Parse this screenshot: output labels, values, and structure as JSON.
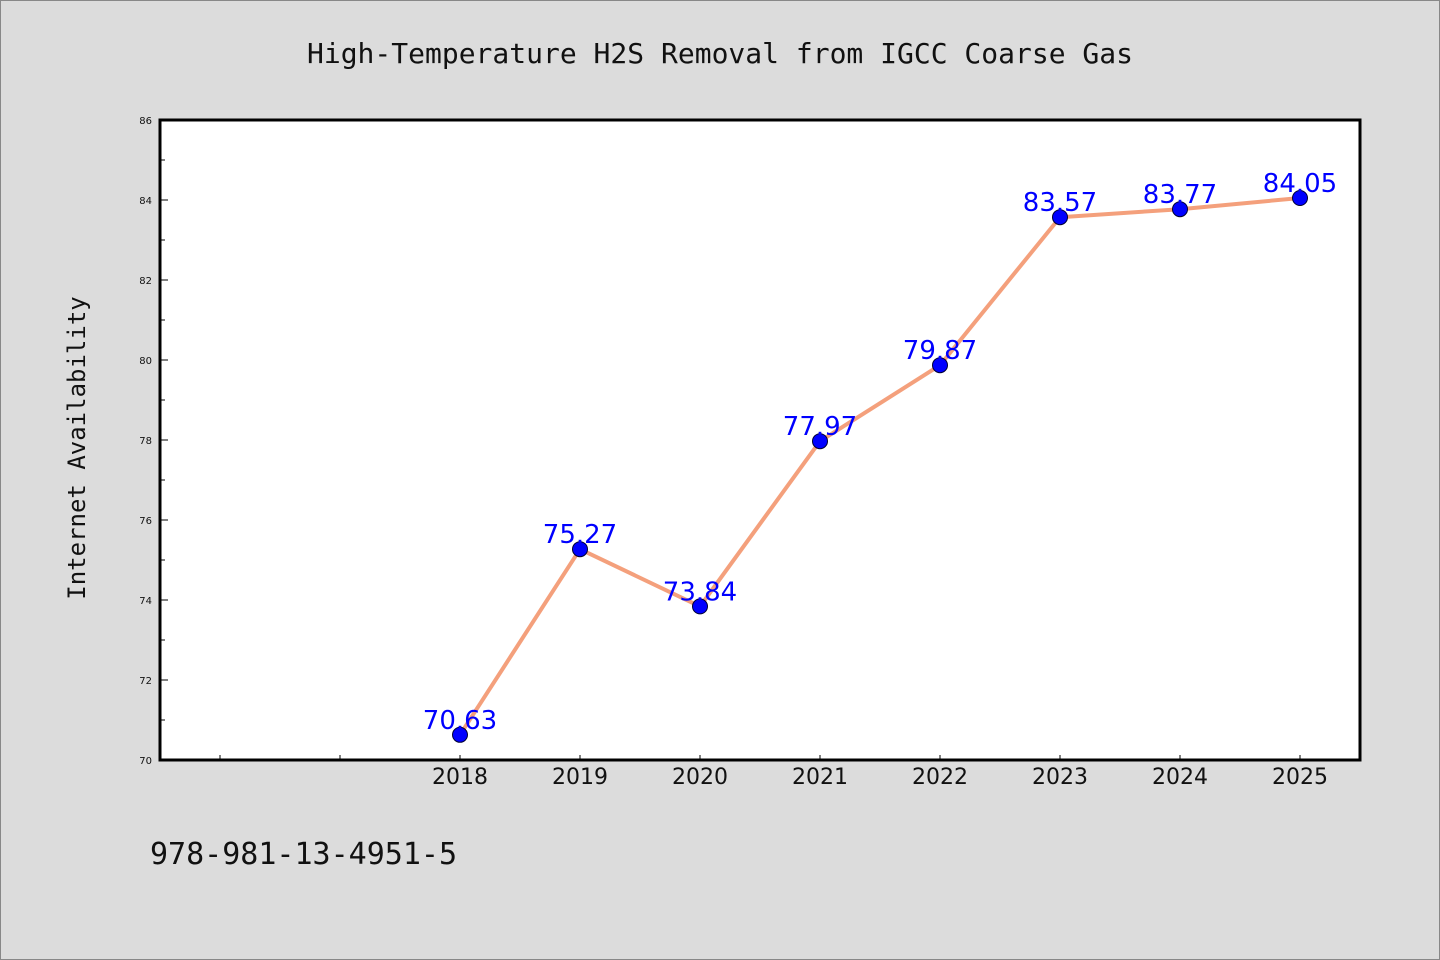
{
  "chart_data": {
    "type": "line",
    "title": "High-Temperature H2S Removal from IGCC Coarse Gas",
    "ylabel": "Internet Availability",
    "xlabel": "",
    "categories": [
      "",
      "",
      "2018",
      "2019",
      "2020",
      "2021",
      "2022",
      "2023",
      "2024",
      "2025"
    ],
    "x": [
      "2018",
      "2019",
      "2020",
      "2021",
      "2022",
      "2023",
      "2024",
      "2025"
    ],
    "series": [
      {
        "values": [
          70.63,
          75.27,
          73.84,
          77.97,
          79.87,
          83.57,
          83.77,
          84.05
        ],
        "labels": [
          "70.63",
          "75.27",
          "73.84",
          "77.97",
          "79.87",
          "83.57",
          "83.77",
          "84.05"
        ],
        "line_color": "#f4a07c",
        "marker_color": "#0000ff"
      }
    ],
    "ylim": [
      70,
      86
    ],
    "yticks": [
      "70",
      "72",
      "74",
      "76",
      "78",
      "80",
      "82",
      "84",
      "86"
    ],
    "grid": false,
    "legend": "none",
    "label_color": "#0000ff"
  },
  "footer": {
    "isbn": "978-981-13-4951-5"
  }
}
